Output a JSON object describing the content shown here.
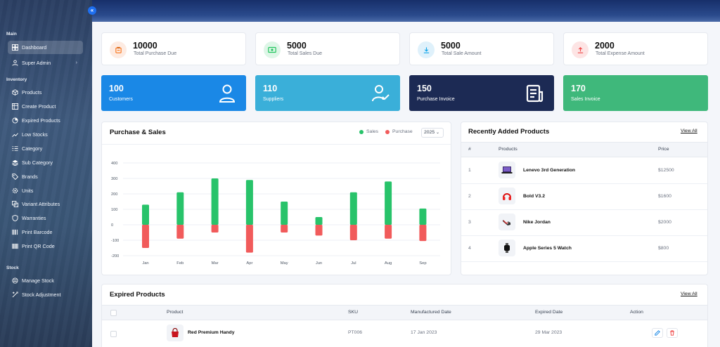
{
  "sidebar": {
    "sections": [
      {
        "label": "Main"
      },
      {
        "label": "Inventory"
      },
      {
        "label": "Stock"
      }
    ],
    "items": [
      {
        "label": "Dashboard",
        "icon": "grid-icon"
      },
      {
        "label": "Super Admin",
        "icon": "user-icon"
      },
      {
        "label": "Products",
        "icon": "box-icon"
      },
      {
        "label": "Create Product",
        "icon": "table-icon"
      },
      {
        "label": "Expired Products",
        "icon": "progress-icon"
      },
      {
        "label": "Low Stocks",
        "icon": "trend-icon"
      },
      {
        "label": "Category",
        "icon": "list-icon"
      },
      {
        "label": "Sub Category",
        "icon": "stack-icon"
      },
      {
        "label": "Brands",
        "icon": "tag-icon"
      },
      {
        "label": "Units",
        "icon": "gear-icon"
      },
      {
        "label": "Variant Attributes",
        "icon": "layers-icon"
      },
      {
        "label": "Warranties",
        "icon": "shield-icon"
      },
      {
        "label": "Print Barcode",
        "icon": "barcode-icon"
      },
      {
        "label": "Print QR Code",
        "icon": "qrcode-icon"
      },
      {
        "label": "Manage Stock",
        "icon": "stack-icon"
      },
      {
        "label": "Stock Adjustment",
        "icon": "adjust-icon"
      }
    ],
    "collapse_glyph": "«"
  },
  "stats": [
    {
      "value": "10000",
      "label": "Total Purchase Due",
      "color": "#f97316",
      "bg": "#fdebe2"
    },
    {
      "value": "5000",
      "label": "Total Sales Due",
      "color": "#22c55e",
      "bg": "#def6e7"
    },
    {
      "value": "5000",
      "label": "Total Sale Amount",
      "color": "#0ea5e9",
      "bg": "#dff1fb"
    },
    {
      "value": "2000",
      "label": "Total Expense Amount",
      "color": "#ef4444",
      "bg": "#fde4e4"
    }
  ],
  "bigcards": [
    {
      "value": "100",
      "label": "Customers",
      "color": "#1a88e6"
    },
    {
      "value": "110",
      "label": "Suppliers",
      "color": "#3aafd9"
    },
    {
      "value": "150",
      "label": "Purchase Invoice",
      "color": "#1c2a54"
    },
    {
      "value": "170",
      "label": "Sales Invoice",
      "color": "#3fb87b"
    }
  ],
  "purchase_sales": {
    "title": "Purchase & Sales",
    "legend_sales": "Sales",
    "legend_purchase": "Purchase",
    "year": "2025",
    "colors": {
      "sales": "#28c36a",
      "purchase": "#f15b5b"
    }
  },
  "chart_data": {
    "type": "bar",
    "categories": [
      "Jan",
      "Feb",
      "Mar",
      "Apr",
      "May",
      "Jun",
      "Jul",
      "Aug",
      "Sep"
    ],
    "series": [
      {
        "name": "Sales",
        "values": [
          130,
          210,
          300,
          290,
          150,
          50,
          210,
          280,
          105
        ]
      },
      {
        "name": "Purchase",
        "values": [
          -150,
          -90,
          -50,
          -180,
          -50,
          -70,
          -100,
          -90,
          -105
        ]
      }
    ],
    "ylim": [
      -200,
      400
    ],
    "yticks": [
      "400",
      "300",
      "200",
      "100",
      "0",
      "-100",
      "-200"
    ],
    "stacked": true,
    "grid": true
  },
  "recent": {
    "title": "Recently Added Products",
    "view_all": "View All",
    "headers": [
      "#",
      "Products",
      "Price"
    ],
    "rows": [
      {
        "num": "1",
        "name": "Lenevo 3rd Generation",
        "price": "$12500",
        "icon": "laptop-icon"
      },
      {
        "num": "2",
        "name": "Bold V3.2",
        "price": "$1600",
        "icon": "headphones-icon"
      },
      {
        "num": "3",
        "name": "Nike Jordan",
        "price": "$2000",
        "icon": "shoe-icon"
      },
      {
        "num": "4",
        "name": "Apple Series 5 Watch",
        "price": "$800",
        "icon": "watch-icon"
      }
    ]
  },
  "expired": {
    "title": "Expired Products",
    "view_all": "View All",
    "headers": [
      "Product",
      "SKU",
      "Manufactured Date",
      "Expired Date",
      "Action"
    ],
    "rows": [
      {
        "name": "Red Premium Handy",
        "sku": "PT006",
        "mfg": "17 Jan 2023",
        "exp": "29 Mar 2023",
        "icon": "bag-icon"
      }
    ]
  }
}
